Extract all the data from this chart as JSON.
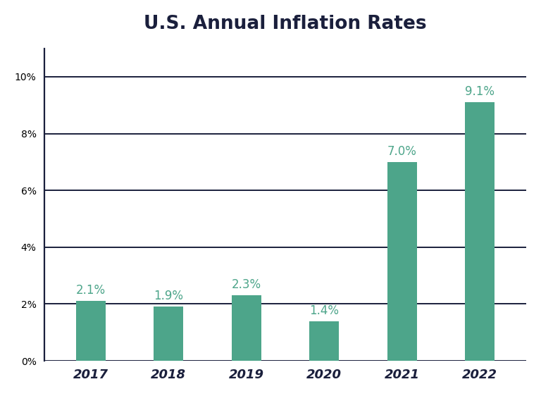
{
  "title": "U.S. Annual Inflation Rates",
  "categories": [
    "2017",
    "2018",
    "2019",
    "2020",
    "2021",
    "2022"
  ],
  "values": [
    2.1,
    1.9,
    2.3,
    1.4,
    7.0,
    9.1
  ],
  "bar_color": "#4da58a",
  "label_color": "#4da58a",
  "title_color": "#1a1f3c",
  "axis_color": "#1a1f3c",
  "grid_color": "#1a1f3c",
  "background_color": "#ffffff",
  "ylim": [
    0,
    11.0
  ],
  "yticks": [
    0,
    2,
    4,
    6,
    8,
    10
  ],
  "ytick_labels": [
    "0%",
    "2%",
    "4%",
    "6%",
    "8%",
    "10%"
  ],
  "title_fontsize": 19,
  "tick_fontsize": 13,
  "label_fontsize": 12,
  "bar_width": 0.38,
  "grid_linewidth": 1.4,
  "spine_linewidth": 1.6
}
